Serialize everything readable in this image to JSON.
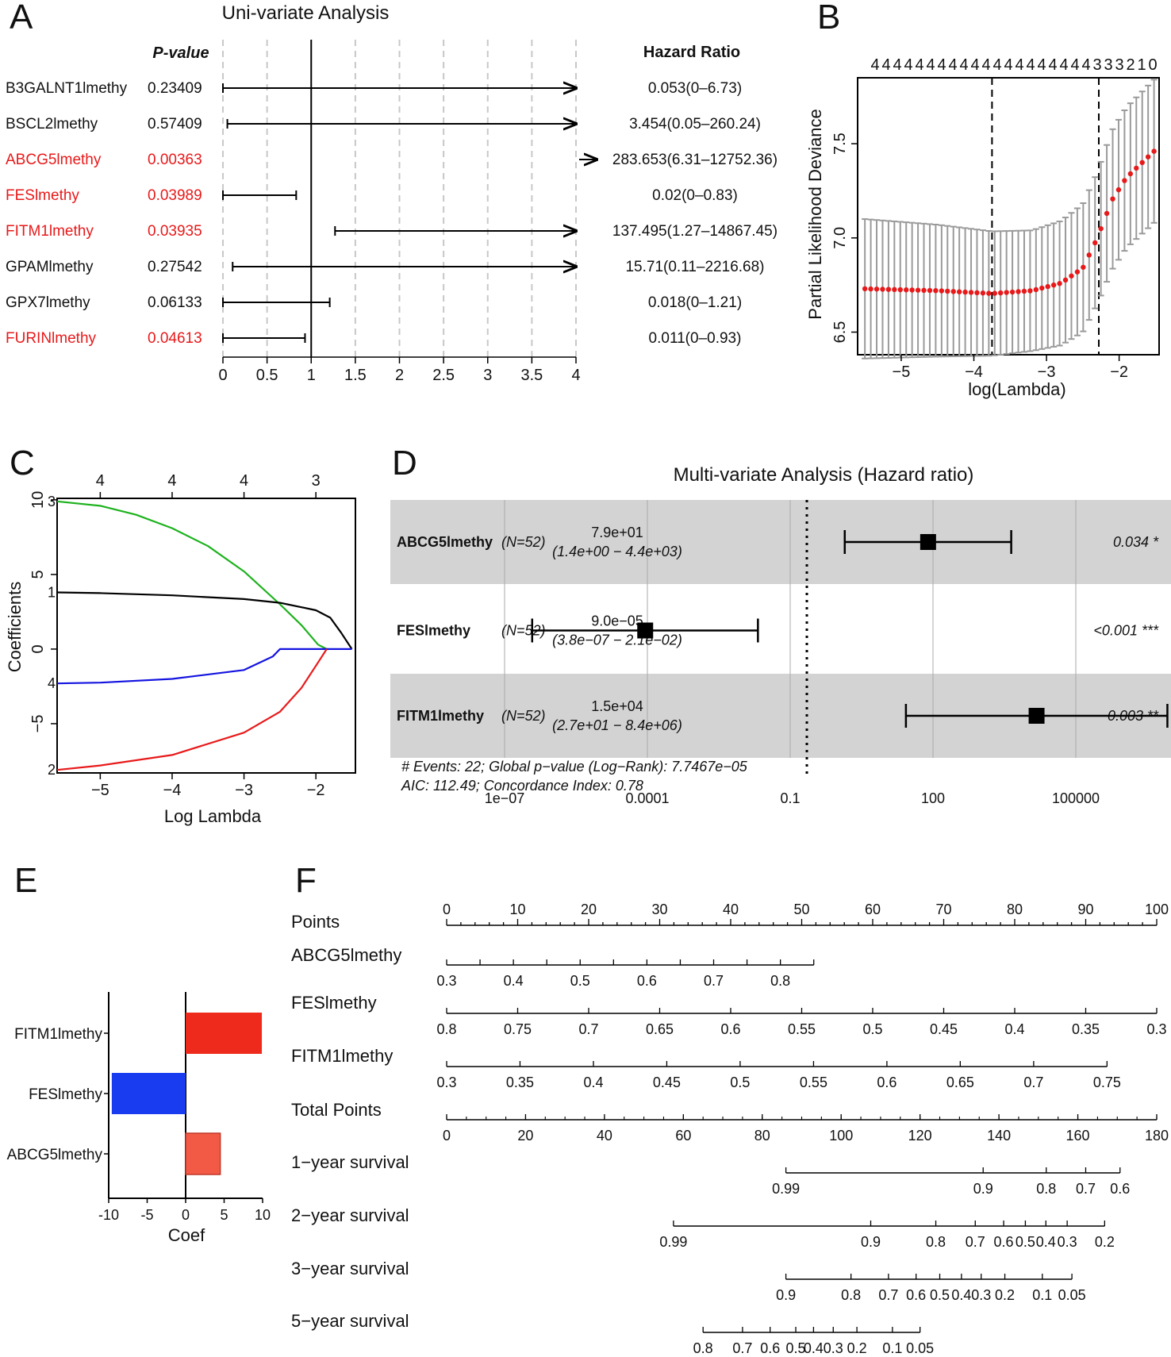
{
  "colors": {
    "significant": "#e8191a",
    "green": "#1db21d",
    "black": "#000000",
    "blue": "#1414e0",
    "red": "#e8191a",
    "grey": "#9a9a9a",
    "band": "#d3d3d3",
    "bar_pos": "#ee2a1c",
    "bar_neg": "#1a3cf0",
    "bar_pos_light": "#f25a45"
  },
  "panels": {
    "a": "A",
    "b": "B",
    "c": "C",
    "d": "D",
    "e": "E",
    "f": "F"
  },
  "chart_data": [
    {
      "id": "A",
      "type": "forest",
      "title": "Uni-variate Analysis",
      "pvalue_header": "P-value",
      "hr_header": "Hazard Ratio",
      "xlim": [
        0,
        4
      ],
      "xticks": [
        "0",
        "0.5",
        "1",
        "1.5",
        "2",
        "2.5",
        "3",
        "3.5",
        "4"
      ],
      "rows": [
        {
          "name": "B3GALNT1lmethy",
          "p": "0.23409",
          "hr": "0.053(0–6.73)",
          "lo": 0,
          "hi": 4,
          "arrow_right": true,
          "significant": false
        },
        {
          "name": "BSCL2lmethy",
          "p": "0.57409",
          "hr": "3.454(0.05–260.24)",
          "lo": 0.05,
          "hi": 4,
          "arrow_right": true,
          "significant": false
        },
        {
          "name": "ABCG5lmethy",
          "p": "0.00363",
          "hr": "283.653(6.31–12752.36)",
          "lo": 6.31,
          "hi": 12752.36,
          "arrow_right": true,
          "significant": true
        },
        {
          "name": "FESlmethy",
          "p": "0.03989",
          "hr": "0.02(0–0.83)",
          "lo": 0,
          "hi": 0.83,
          "arrow_right": false,
          "significant": true
        },
        {
          "name": "FITM1lmethy",
          "p": "0.03935",
          "hr": "137.495(1.27–14867.45)",
          "lo": 1.27,
          "hi": 4,
          "arrow_right": true,
          "significant": true
        },
        {
          "name": "GPAMlmethy",
          "p": "0.27542",
          "hr": "15.71(0.11–2216.68)",
          "lo": 0.11,
          "hi": 4,
          "arrow_right": true,
          "significant": false
        },
        {
          "name": "GPX7lmethy",
          "p": "0.06133",
          "hr": "0.018(0–1.21)",
          "lo": 0,
          "hi": 1.21,
          "arrow_right": false,
          "significant": false
        },
        {
          "name": "FURINlmethy",
          "p": "0.04613",
          "hr": "0.011(0–0.93)",
          "lo": 0,
          "hi": 0.93,
          "arrow_right": false,
          "significant": true
        }
      ]
    },
    {
      "id": "B",
      "type": "scatter",
      "xlabel": "log(Lambda)",
      "ylabel": "Partial Likelihood Deviance",
      "xlim": [
        -5.6,
        -1.45
      ],
      "ylim": [
        6.38,
        7.85
      ],
      "xticks": [
        -5,
        -4,
        -3,
        -2
      ],
      "xtick_labels": [
        "−5",
        "−4",
        "−3",
        "−2"
      ],
      "yticks": [
        6.5,
        7.0,
        7.5
      ],
      "ytick_labels": [
        "6.5",
        "7.0",
        "7.5"
      ],
      "top_labels": [
        "4",
        "4",
        "4",
        "4",
        "4",
        "4",
        "4",
        "4",
        "4",
        "4",
        "4",
        "4",
        "4",
        "4",
        "4",
        "4",
        "4",
        "4",
        "4",
        "4",
        "3",
        "3",
        "3",
        "2",
        "1",
        "0"
      ],
      "vlines": [
        -3.75,
        -2.28
      ],
      "x_start": -5.5,
      "x_end": -1.52,
      "n_points": 50,
      "deviance_anchors": [
        [
          -5.5,
          6.73
        ],
        [
          -4.5,
          6.72
        ],
        [
          -3.75,
          6.705
        ],
        [
          -3.2,
          6.72
        ],
        [
          -2.8,
          6.76
        ],
        [
          -2.5,
          6.84
        ],
        [
          -2.3,
          7.0
        ],
        [
          -2.1,
          7.2
        ],
        [
          -1.9,
          7.32
        ],
        [
          -1.52,
          7.46
        ]
      ],
      "error_anchors": [
        [
          -5.5,
          0.37
        ],
        [
          -4.5,
          0.35
        ],
        [
          -3.75,
          0.33
        ],
        [
          -3.2,
          0.32
        ],
        [
          -2.8,
          0.33
        ],
        [
          -2.5,
          0.34
        ],
        [
          -2.3,
          0.35
        ],
        [
          -2.1,
          0.37
        ],
        [
          -1.52,
          0.38
        ]
      ]
    },
    {
      "id": "C",
      "type": "line",
      "xlabel": "Log Lambda",
      "ylabel": "Coefficients",
      "xlim": [
        -5.6,
        -1.45
      ],
      "ylim": [
        -8.3,
        10.1
      ],
      "xticks": [
        -5,
        -4,
        -3,
        -2
      ],
      "xtick_labels": [
        "−5",
        "−4",
        "−3",
        "−2"
      ],
      "yticks": [
        -5,
        0,
        5,
        10
      ],
      "ytick_labels": [
        "−5",
        "0",
        "5",
        "10"
      ],
      "top_ticks": [
        -5,
        -4,
        -3,
        -2
      ],
      "top_labels": [
        "4",
        "4",
        "4",
        "3"
      ],
      "series": [
        {
          "name": "3",
          "color": "#1db21d",
          "points": [
            [
              -5.6,
              9.9
            ],
            [
              -5,
              9.6
            ],
            [
              -4.5,
              9.0
            ],
            [
              -4,
              8.1
            ],
            [
              -3.5,
              6.9
            ],
            [
              -3,
              5.2
            ],
            [
              -2.5,
              3.0
            ],
            [
              -2.2,
              1.6
            ],
            [
              -1.97,
              0.3
            ],
            [
              -1.85,
              0
            ]
          ]
        },
        {
          "name": "1",
          "color": "#000000",
          "points": [
            [
              -5.6,
              3.8
            ],
            [
              -5,
              3.75
            ],
            [
              -4,
              3.6
            ],
            [
              -3,
              3.35
            ],
            [
              -2.5,
              3.1
            ],
            [
              -2,
              2.6
            ],
            [
              -1.8,
              2.1
            ],
            [
              -1.65,
              1.1
            ],
            [
              -1.5,
              0
            ]
          ]
        },
        {
          "name": "4",
          "color": "#1414e0",
          "points": [
            [
              -5.6,
              -2.3
            ],
            [
              -5,
              -2.25
            ],
            [
              -4,
              -2.0
            ],
            [
              -3,
              -1.4
            ],
            [
              -2.6,
              -0.5
            ],
            [
              -2.5,
              0
            ],
            [
              -1.5,
              0
            ]
          ]
        },
        {
          "name": "2",
          "color": "#e8191a",
          "points": [
            [
              -5.6,
              -8.1
            ],
            [
              -5,
              -7.8
            ],
            [
              -4,
              -7.1
            ],
            [
              -3,
              -5.6
            ],
            [
              -2.5,
              -4.2
            ],
            [
              -2.2,
              -2.6
            ],
            [
              -1.97,
              -0.9
            ],
            [
              -1.85,
              0
            ]
          ]
        }
      ]
    },
    {
      "id": "D",
      "type": "forest",
      "title": "Multi-variate Analysis (Hazard ratio)",
      "x_axis_scale": "log10",
      "xlim_log10": [
        -9.4,
        7.0
      ],
      "reference_log10": -0.65,
      "xticks_log10": [
        -7,
        -4,
        -1,
        2,
        5
      ],
      "xtick_labels": [
        "1e−07",
        "0.0001",
        "0.1",
        "100",
        "100000"
      ],
      "rows": [
        {
          "name": "ABCG5lmethy",
          "n": "(N=52)",
          "hr": "7.9e+01",
          "ci": "(1.4e+00 − 4.4e+03)",
          "p": "0.034 *",
          "hr_value": 79,
          "lo": 1.4,
          "hi": 4400,
          "shaded": true
        },
        {
          "name": "FESlmethy",
          "n": "(N=52)",
          "hr": "9.0e−05",
          "ci": "(3.8e−07 − 2.1e−02)",
          "p": "<0.001 ***",
          "hr_value": 9e-05,
          "lo": 3.8e-07,
          "hi": 0.021,
          "shaded": false
        },
        {
          "name": "FITM1lmethy",
          "n": "(N=52)",
          "hr": "1.5e+04",
          "ci": "(2.7e+01 − 8.4e+06)",
          "p": "0.003 **",
          "hr_value": 15000,
          "lo": 27,
          "hi": 8400000,
          "shaded": true
        }
      ],
      "footnote1": "# Events: 22; Global p−value (Log−Rank): 7.7467e−05",
      "footnote2": "AIC: 112.49; Concordance Index: 0.78"
    },
    {
      "id": "E",
      "type": "bar",
      "orientation": "horizontal",
      "xlabel": "Coef",
      "xlim": [
        -10,
        10
      ],
      "xticks": [
        -10,
        -5,
        0,
        5,
        10
      ],
      "xtick_labels": [
        "-10",
        "-5",
        "0",
        "5",
        "10"
      ],
      "categories": [
        "FITM1lmethy",
        "FESlmethy",
        "ABCG5lmethy"
      ],
      "values": [
        9.9,
        -9.6,
        4.5
      ]
    },
    {
      "id": "F",
      "type": "nomogram",
      "rows": [
        {
          "label": "Points",
          "scale_max": 100,
          "range": [
            0,
            100
          ],
          "ticks": [
            0,
            10,
            20,
            30,
            40,
            50,
            60,
            70,
            80,
            90,
            100
          ],
          "labels_above": true
        },
        {
          "label": "ABCG5lmethy",
          "scale_max": 100,
          "range": [
            0,
            51.7
          ],
          "ticks": [
            0,
            4.7,
            9.4,
            14.1,
            18.8,
            23.5,
            28.2,
            32.9,
            37.6,
            42.3,
            47.0,
            51.7
          ],
          "labeled": [
            [
              0,
              "0.3"
            ],
            [
              9.4,
              "0.4"
            ],
            [
              18.8,
              "0.5"
            ],
            [
              28.2,
              "0.6"
            ],
            [
              37.6,
              "0.7"
            ],
            [
              47.0,
              "0.8"
            ]
          ]
        },
        {
          "label": "FESlmethy",
          "scale_max": 100,
          "range": [
            0,
            100
          ],
          "ticks": [
            0,
            10,
            20,
            30,
            40,
            50,
            60,
            70,
            80,
            90,
            100
          ],
          "labeled": [
            [
              0,
              "0.8"
            ],
            [
              10,
              "0.75"
            ],
            [
              20,
              "0.7"
            ],
            [
              30,
              "0.65"
            ],
            [
              40,
              "0.6"
            ],
            [
              50,
              "0.55"
            ],
            [
              60,
              "0.5"
            ],
            [
              70,
              "0.45"
            ],
            [
              80,
              "0.4"
            ],
            [
              90,
              "0.35"
            ],
            [
              100,
              "0.3"
            ]
          ]
        },
        {
          "label": "FITM1lmethy",
          "scale_max": 100,
          "range": [
            0,
            93
          ],
          "ticks": [
            0,
            10.33,
            20.67,
            31,
            41.33,
            51.67,
            62,
            72.33,
            82.67,
            93
          ],
          "labeled": [
            [
              0,
              "0.3"
            ],
            [
              10.33,
              "0.35"
            ],
            [
              20.67,
              "0.4"
            ],
            [
              31,
              "0.45"
            ],
            [
              41.33,
              "0.5"
            ],
            [
              51.67,
              "0.55"
            ],
            [
              62,
              "0.6"
            ],
            [
              72.33,
              "0.65"
            ],
            [
              82.67,
              "0.7"
            ],
            [
              93,
              "0.75"
            ]
          ]
        },
        {
          "label": "Total Points",
          "scale_max": 180,
          "range": [
            0,
            180
          ],
          "ticks": [
            0,
            20,
            40,
            60,
            80,
            100,
            120,
            140,
            160,
            180
          ],
          "labeled": [
            [
              0,
              "0"
            ],
            [
              20,
              "20"
            ],
            [
              40,
              "40"
            ],
            [
              60,
              "60"
            ],
            [
              80,
              "80"
            ],
            [
              100,
              "100"
            ],
            [
              120,
              "120"
            ],
            [
              140,
              "140"
            ],
            [
              160,
              "160"
            ],
            [
              180,
              "180"
            ]
          ],
          "minor": true
        },
        {
          "label": "1−year survival",
          "scale_max": 180,
          "range": [
            86,
            170.7
          ],
          "labeled": [
            [
              86,
              "0.99"
            ],
            [
              136,
              "0.9"
            ],
            [
              152,
              "0.8"
            ],
            [
              162,
              "0.7"
            ],
            [
              170.7,
              "0.6"
            ]
          ]
        },
        {
          "label": "2−year survival",
          "scale_max": 180,
          "range": [
            57.5,
            166.8
          ],
          "labeled": [
            [
              57.5,
              "0.99"
            ],
            [
              107.5,
              "0.9"
            ],
            [
              124,
              "0.8"
            ],
            [
              134,
              "0.7"
            ],
            [
              141.2,
              "0.6"
            ],
            [
              146.7,
              "0.5"
            ],
            [
              151.9,
              "0.4"
            ],
            [
              157.3,
              "0.3"
            ],
            [
              166.8,
              "0.2"
            ]
          ]
        },
        {
          "label": "3−year survival",
          "scale_max": 180,
          "range": [
            86,
            158.5
          ],
          "labeled": [
            [
              86,
              "0.9"
            ],
            [
              102.5,
              "0.8"
            ],
            [
              112,
              "0.7"
            ],
            [
              119,
              "0.6"
            ],
            [
              125,
              "0.5"
            ],
            [
              130.5,
              "0.4"
            ],
            [
              135.5,
              "0.3"
            ],
            [
              141.5,
              "0.2"
            ],
            [
              151,
              "0.1"
            ],
            [
              158.5,
              "0.05"
            ]
          ]
        },
        {
          "label": "5−year survival",
          "scale_max": 180,
          "range": [
            65,
            120
          ],
          "labeled": [
            [
              65,
              "0.8"
            ],
            [
              75,
              "0.7"
            ],
            [
              82,
              "0.6"
            ],
            [
              88.5,
              "0.5"
            ],
            [
              93,
              "0.4"
            ],
            [
              98,
              "0.3"
            ],
            [
              104,
              "0.2"
            ],
            [
              113,
              "0.1"
            ],
            [
              120,
              "0.05"
            ]
          ]
        }
      ]
    }
  ]
}
